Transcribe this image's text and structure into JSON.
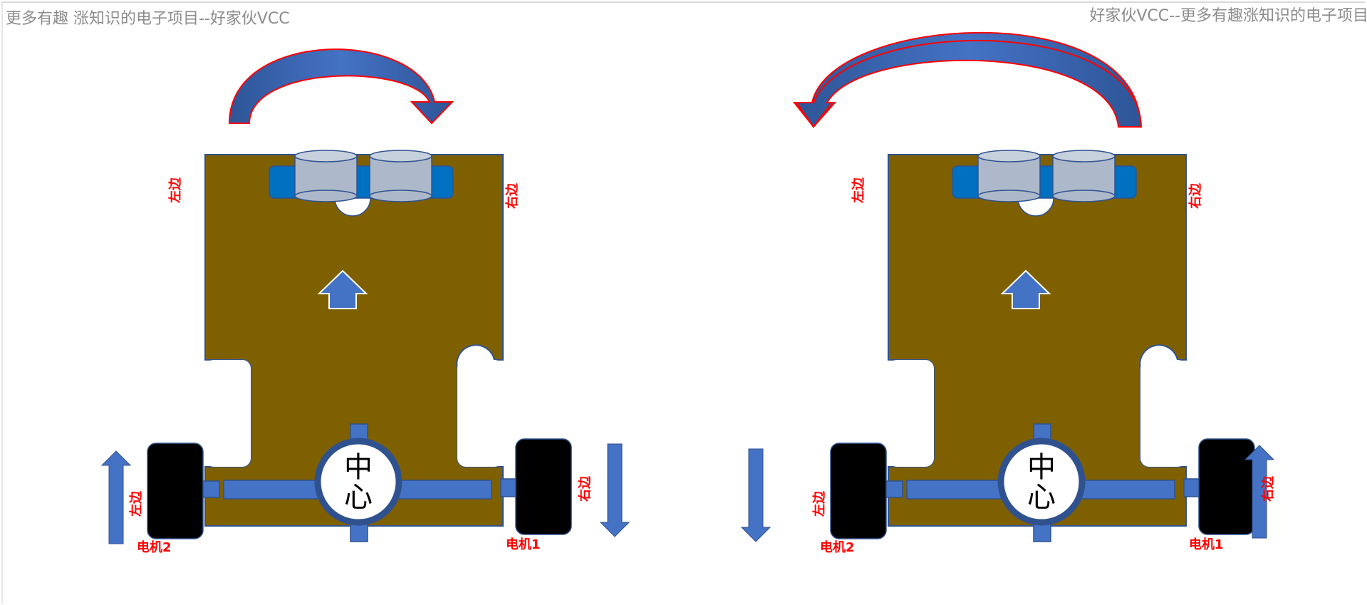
{
  "watermark": {
    "left": "更多有趣 涨知识的电子项目--好家伙VCC",
    "right": "好家伙VCC--更多有趣涨知识的电子项目"
  },
  "colors": {
    "board": "#7f6000",
    "part_blue": "#4472c4",
    "sensor_bar": "#0070c0",
    "sensor_cyl": "#adb9ca",
    "wheel": "#000000",
    "label_red": "#ff0000",
    "arrow_outline": "#ff0000"
  },
  "robots": [
    {
      "turn": "clockwise",
      "left_label": "左边",
      "right_label": "右边",
      "center_label_top": "中",
      "center_label_bottom": "心",
      "motor_left": {
        "label": "电机2",
        "side_label": "左边",
        "arrow": "up"
      },
      "motor_right": {
        "label": "电机1",
        "side_label": "右边",
        "arrow": "down"
      }
    },
    {
      "turn": "counterclockwise",
      "left_label": "左边",
      "right_label": "右边",
      "center_label_top": "中",
      "center_label_bottom": "心",
      "motor_left": {
        "label": "电机2",
        "side_label": "左边",
        "arrow": "down"
      },
      "motor_right": {
        "label": "电机1",
        "side_label": "右边",
        "arrow": "up"
      }
    }
  ]
}
